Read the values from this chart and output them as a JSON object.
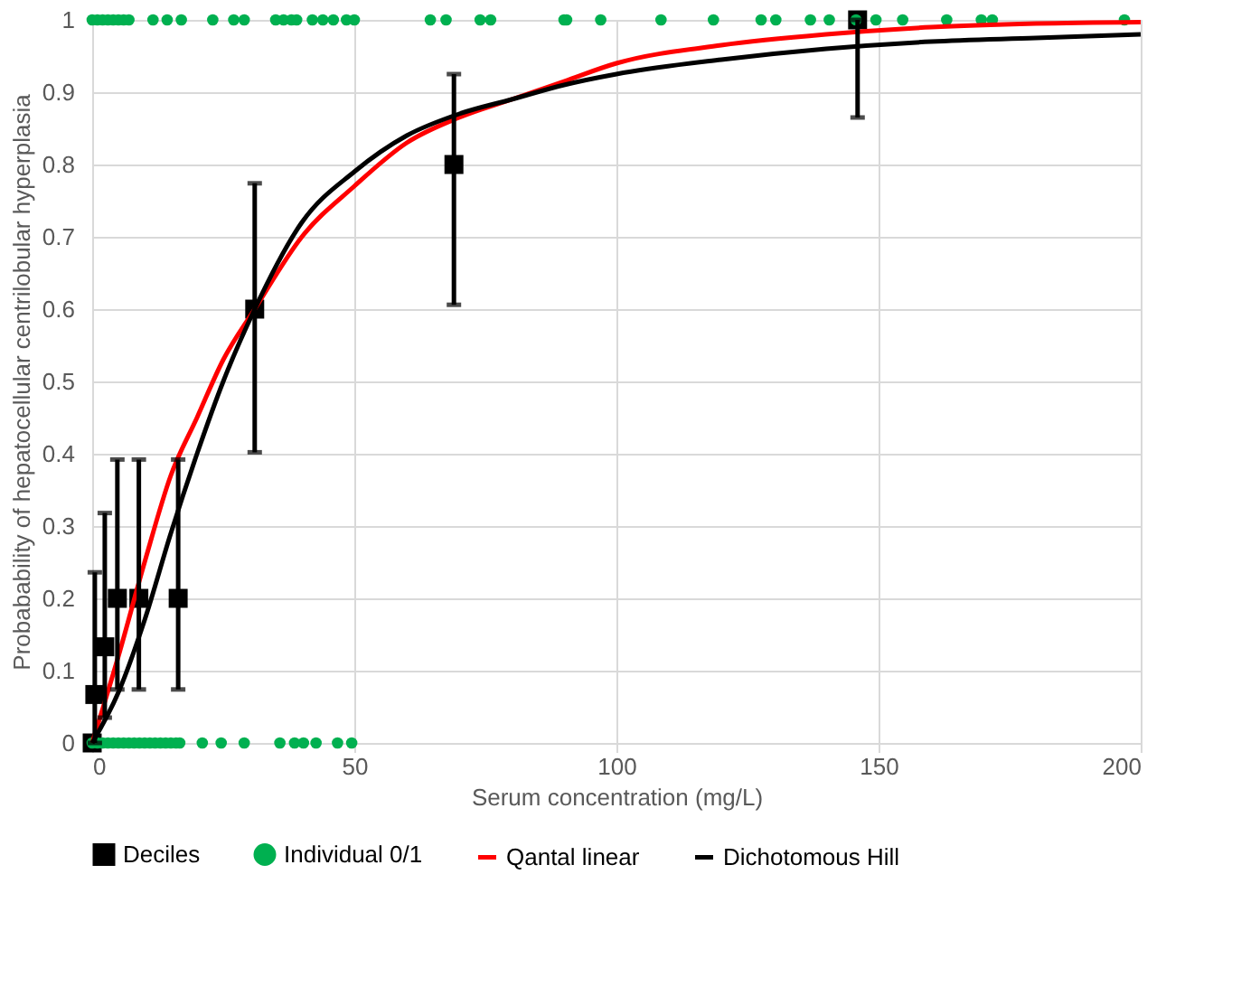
{
  "chart_data": {
    "type": "scatter",
    "xlabel": "Serum concentration (mg/L)",
    "ylabel": "Probabability of hepatocellular centrilobular hyperplasia",
    "xlim": [
      0,
      200
    ],
    "xticks": [
      0,
      50,
      100,
      150,
      200
    ],
    "ylim": [
      0,
      1
    ],
    "yticks": [
      0,
      0.1,
      0.2,
      0.3,
      0.4,
      0.5,
      0.6,
      0.7,
      0.8,
      0.9,
      1
    ],
    "grid": true,
    "legend": "bottom",
    "series": [
      {
        "name": "Deciles",
        "type": "scatter",
        "marker": "square",
        "color": "#000000",
        "x": [
          0,
          0.5,
          2.4,
          4.8,
          8.9,
          16.4,
          31,
          69,
          146
        ],
        "values": [
          0,
          0.067,
          0.133,
          0.2,
          0.2,
          0.2,
          0.6,
          0.8,
          1
        ],
        "errors": [
          null,
          [
            0,
            0.236
          ],
          [
            0.035,
            0.318
          ],
          [
            0.074,
            0.392
          ],
          [
            0.074,
            0.392
          ],
          [
            0.074,
            0.392
          ],
          [
            0.402,
            0.774
          ],
          [
            0.606,
            0.925
          ],
          [
            0.865,
            1
          ]
        ]
      },
      {
        "name": "Individual 0/1",
        "type": "scatter",
        "marker": "circle",
        "color": "#00b050",
        "x": [
          0,
          1,
          2,
          3,
          4,
          5,
          6,
          7,
          11.6,
          14.3,
          17,
          23,
          27,
          29,
          35,
          36.5,
          38,
          39,
          42,
          44,
          46,
          48.5,
          50,
          64.5,
          67.5,
          74,
          76,
          90,
          90.5,
          97,
          108.5,
          118.5,
          127.6,
          130.4,
          137,
          140.6,
          145.7,
          149.5,
          154.6,
          163,
          169.6,
          171.7,
          196.9,
          0,
          1,
          2,
          3,
          4,
          5,
          6,
          7,
          8,
          9,
          10,
          11,
          12,
          13,
          14,
          15,
          16,
          16.7,
          21,
          24.6,
          29,
          35.8,
          38.6,
          40.3,
          42.7,
          46.8,
          49.5
        ],
        "values": [
          1,
          1,
          1,
          1,
          1,
          1,
          1,
          1,
          1,
          1,
          1,
          1,
          1,
          1,
          1,
          1,
          1,
          1,
          1,
          1,
          1,
          1,
          1,
          1,
          1,
          1,
          1,
          1,
          1,
          1,
          1,
          1,
          1,
          1,
          1,
          1,
          1,
          1,
          1,
          1,
          1,
          1,
          1,
          0,
          0,
          0,
          0,
          0,
          0,
          0,
          0,
          0,
          0,
          0,
          0,
          0,
          0,
          0,
          0,
          0,
          0,
          0,
          0,
          0,
          0,
          0,
          0,
          0,
          0,
          0
        ]
      },
      {
        "name": "Qantal linear",
        "type": "line",
        "marker": "none",
        "color": "#ff0000",
        "x": [
          0,
          5,
          10,
          15,
          20,
          25,
          31,
          40,
          50,
          60,
          70,
          80,
          90,
          100,
          120,
          140,
          160,
          180,
          200
        ],
        "values": [
          0,
          0.12,
          0.25,
          0.37,
          0.45,
          0.53,
          0.6,
          0.7,
          0.77,
          0.83,
          0.865,
          0.89,
          0.915,
          0.94,
          0.965,
          0.98,
          0.99,
          0.995,
          0.997
        ]
      },
      {
        "name": "Dichotomous Hill",
        "type": "line",
        "marker": "none",
        "color": "#000000",
        "x": [
          0,
          5,
          10,
          15,
          20,
          25,
          31,
          40,
          50,
          60,
          70,
          80,
          90,
          100,
          120,
          140,
          160,
          180,
          200
        ],
        "values": [
          0,
          0.07,
          0.17,
          0.29,
          0.4,
          0.5,
          0.6,
          0.72,
          0.79,
          0.84,
          0.87,
          0.89,
          0.91,
          0.925,
          0.945,
          0.96,
          0.97,
          0.975,
          0.98
        ]
      }
    ]
  }
}
